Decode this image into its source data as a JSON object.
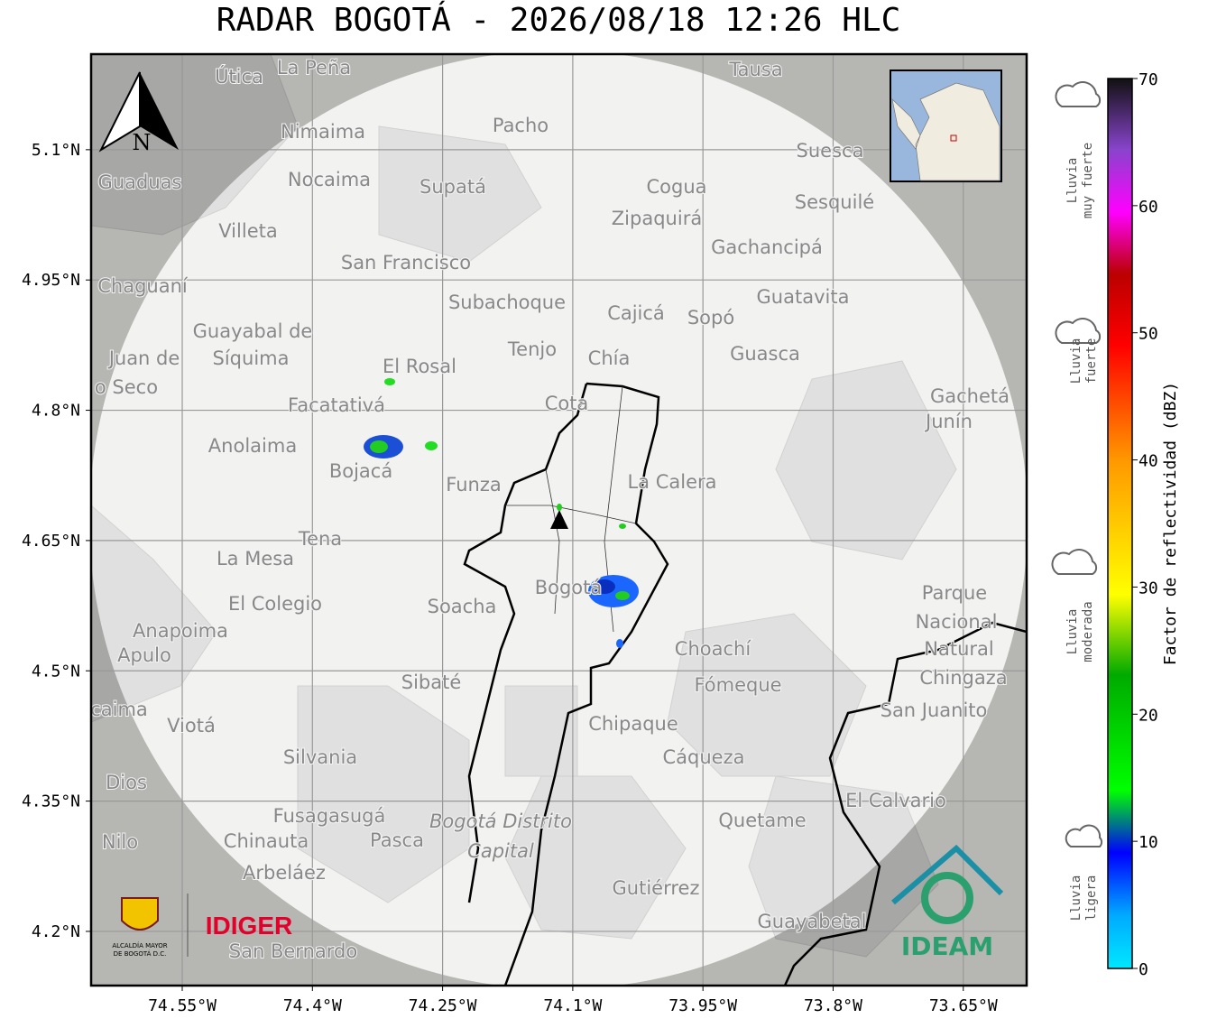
{
  "title": "RADAR BOGOTÁ - 2026/08/18 12:26 HLC",
  "map": {
    "xlim": [
      -74.655,
      -73.577
    ],
    "ylim": [
      4.1376,
      5.21
    ],
    "yticks": [
      {
        "value": 4.2,
        "label": "4.2°N"
      },
      {
        "value": 4.35,
        "label": "4.35°N"
      },
      {
        "value": 4.5,
        "label": "4.5°N"
      },
      {
        "value": 4.65,
        "label": "4.65°N"
      },
      {
        "value": 4.8,
        "label": "4.8°N"
      },
      {
        "value": 4.95,
        "label": "4.95°N"
      },
      {
        "value": 5.1,
        "label": "5.1°N"
      }
    ],
    "xticks": [
      {
        "value": -74.55,
        "label": "74.55°W"
      },
      {
        "value": -74.4,
        "label": "74.4°W"
      },
      {
        "value": -74.25,
        "label": "74.25°W"
      },
      {
        "value": -74.1,
        "label": "74.1°W"
      },
      {
        "value": -73.95,
        "label": "73.95°W"
      },
      {
        "value": -73.8,
        "label": "73.8°W"
      },
      {
        "value": -73.65,
        "label": "73.65°W"
      }
    ],
    "places": [
      "La Peña",
      "Útica",
      "Tausa",
      "Pacho",
      "Nimaima",
      "Suesca",
      "Guaduas",
      "Nocaima",
      "Supatá",
      "Cogua",
      "Sesquilé",
      "Zipaquirá",
      "Villeta",
      "Gachancipá",
      "San Francisco",
      "Chaguaní",
      "Guatavita",
      "Subachoque",
      "Cajicá",
      "Sopó",
      "Guayabal de",
      "Síquima",
      "Tenjo",
      "Guasca",
      "Juan de",
      "Chía",
      "El Rosal",
      "o Seco",
      "Cota",
      "Gachetá",
      "Facatativá",
      "Junín",
      "Anolaima",
      "Bojacá",
      "Funza",
      "La Calera",
      "Tena",
      "La Mesa",
      "Bogotá",
      "El Colegio",
      "Soacha",
      "Parque",
      "Nacional",
      "Natural",
      "Chingaza",
      "Anapoima",
      "Apulo",
      "Choachí",
      "Sibaté",
      "Fómeque",
      "San Juanito",
      "caima",
      "Viotá",
      "Chipaque",
      "Silvania",
      "Cáqueza",
      "Dios",
      "El Calvario",
      "Fusagasugá",
      "Quetame",
      "Nilo",
      "Chinauta",
      "Pasca",
      "Arbeláez",
      "Gutiérrez",
      "Guayabetal",
      "San Bernardo"
    ],
    "district": [
      "Bogotá Distrito",
      "Capital"
    ],
    "north": "N"
  },
  "colorbar": {
    "label": "Factor de reflectividad (dBZ)",
    "lim": [
      0,
      70
    ],
    "ticks": [
      0,
      10,
      20,
      30,
      40,
      50,
      60,
      70
    ]
  },
  "rain_levels": [
    [
      "Lluvia",
      "muy fuerte"
    ],
    [
      "Lluvia",
      "fuerte"
    ],
    [
      "Lluvia",
      "moderada"
    ],
    [
      "Lluvia",
      "ligera"
    ]
  ],
  "logos": {
    "alcaldia": [
      "ALCALDÍA MAYOR",
      "DE BOGOTÁ D.C."
    ],
    "idiger": "IDIGER",
    "ideam": "IDEAM"
  }
}
